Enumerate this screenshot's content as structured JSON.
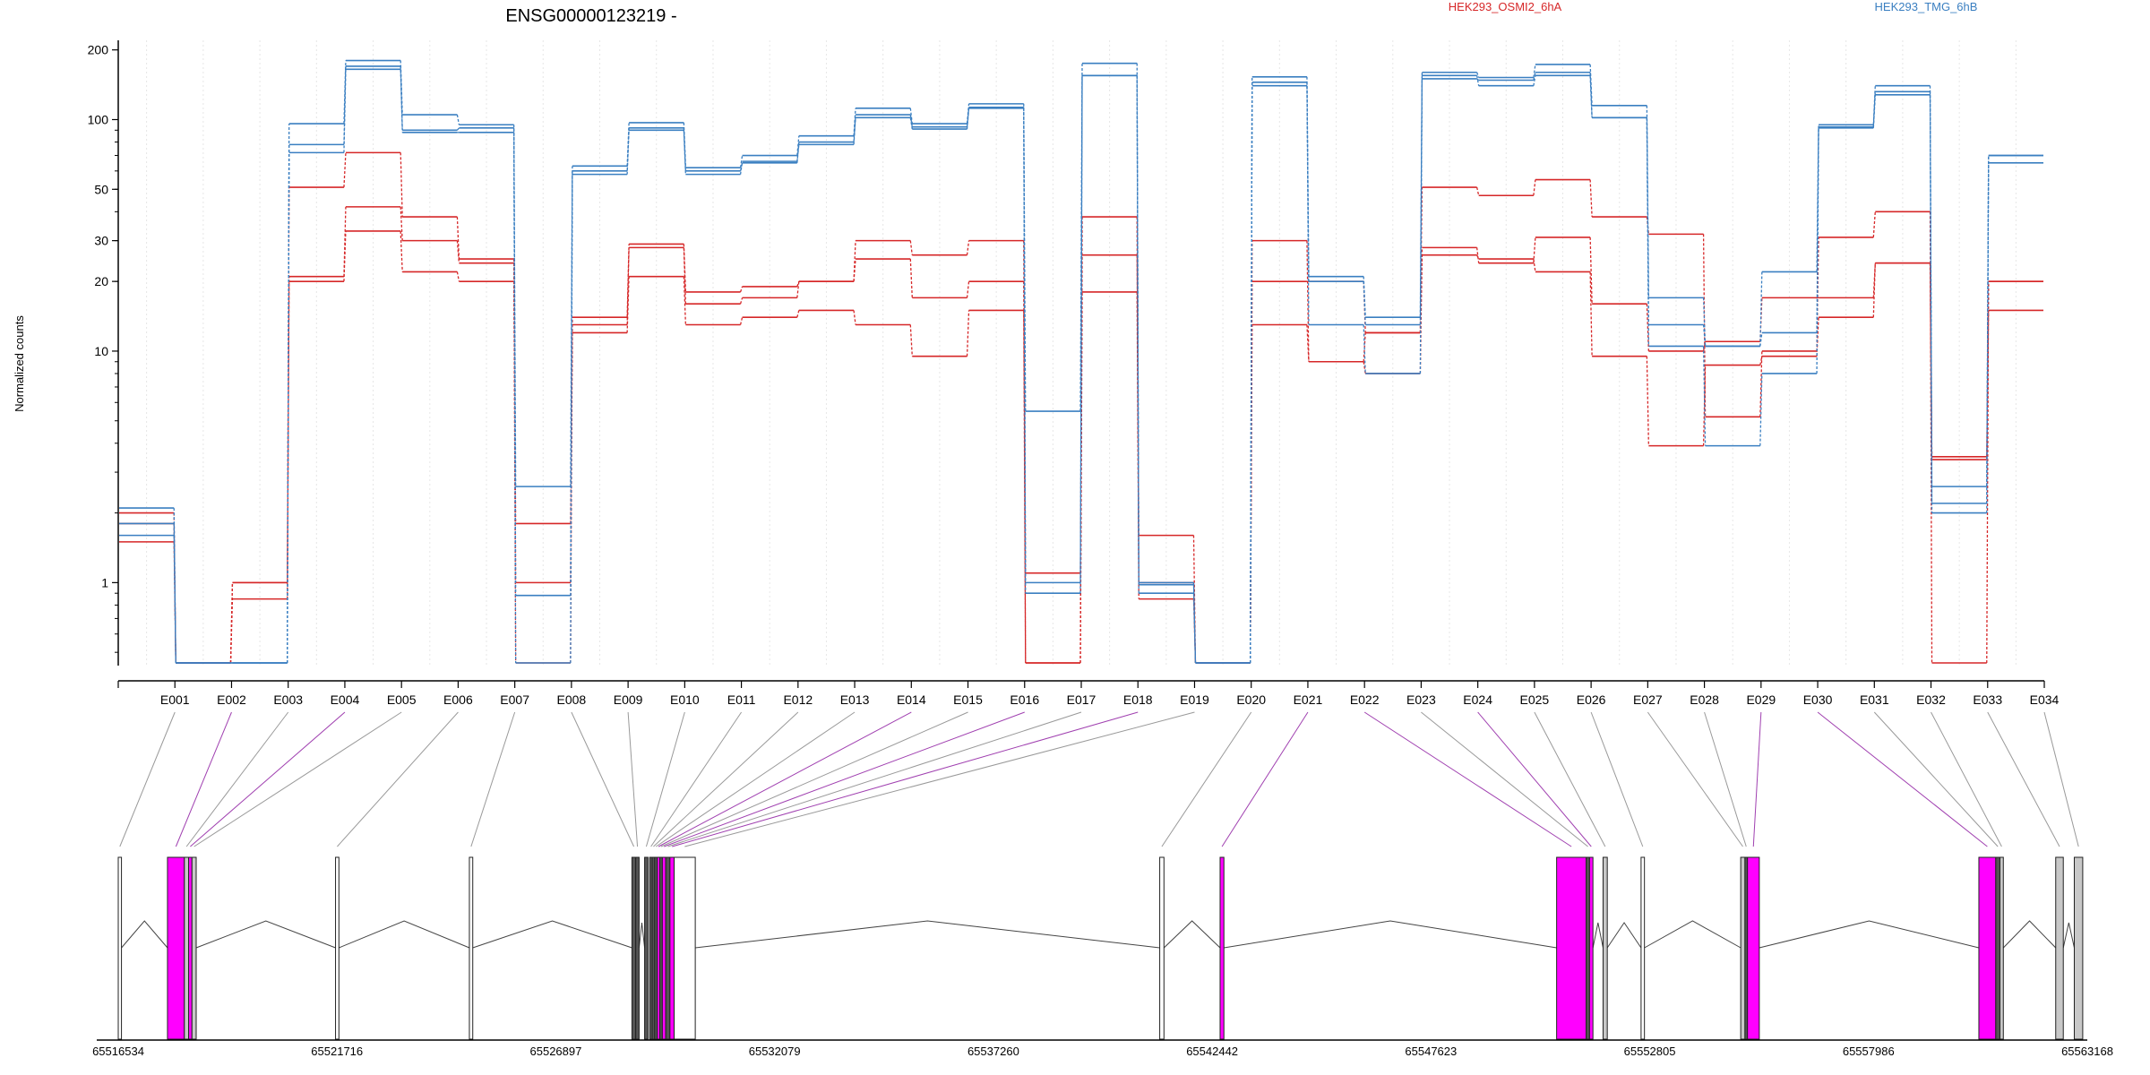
{
  "chart_data": [
    {
      "type": "line",
      "title": "ENSG00000123219 -",
      "ylabel": "Normalized counts",
      "yscale": "log",
      "ylim": [
        0.45,
        220
      ],
      "ytick_labels": [
        "1",
        "10",
        "20",
        "30",
        "50",
        "100",
        "200"
      ],
      "ytick_values": [
        1,
        10,
        20,
        30,
        50,
        100,
        200
      ],
      "ylabel_floor_value": 0.45,
      "categories": [
        "E001",
        "E002",
        "E003",
        "E004",
        "E005",
        "E006",
        "E007",
        "E008",
        "E009",
        "E010",
        "E011",
        "E012",
        "E013",
        "E014",
        "E015",
        "E016",
        "E017",
        "E018",
        "E019",
        "E020",
        "E021",
        "E022",
        "E023",
        "E024",
        "E025",
        "E026",
        "E027",
        "E028",
        "E029",
        "E030",
        "E031",
        "E032",
        "E033",
        "E034"
      ],
      "grid": "vertical",
      "legend": [
        {
          "name": "HEK293_OSMI2_6hA",
          "color": "#d62728",
          "placement": "top-center"
        },
        {
          "name": "HEK293_TMG_6hB",
          "color": "#3a7fc1",
          "placement": "top-right"
        }
      ],
      "series": [
        {
          "group": "HEK293_OSMI2_6hA",
          "color": "#d62728",
          "values": [
            1.8,
            0.45,
            1.0,
            21,
            42,
            30,
            24,
            1.0,
            13,
            28,
            16,
            17,
            20,
            25,
            17,
            20,
            1.1,
            26,
            1.6,
            0.45,
            20,
            20,
            12,
            28,
            24,
            31,
            16,
            10,
            11,
            17,
            17,
            24,
            3.5,
            20
          ]
        },
        {
          "group": "HEK293_OSMI2_6hA",
          "color": "#d62728",
          "values": [
            1.5,
            0.45,
            0.85,
            20,
            33,
            22,
            20,
            1.8,
            12,
            21,
            13,
            14,
            15,
            13,
            9.5,
            15,
            0.45,
            18,
            1.0,
            0.45,
            13,
            9.0,
            8.0,
            26,
            25,
            22,
            9.5,
            3.9,
            8.7,
            9.5,
            14,
            24,
            3.4,
            15
          ]
        },
        {
          "group": "HEK293_OSMI2_6hA",
          "color": "#d62728",
          "values": [
            2.0,
            0.45,
            1.0,
            51,
            72,
            38,
            25,
            0.45,
            14,
            29,
            18,
            19,
            20,
            30,
            26,
            30,
            0.45,
            38,
            0.85,
            0.45,
            30,
            9.0,
            12,
            51,
            47,
            55,
            38,
            32,
            5.2,
            10,
            31,
            40,
            0.45,
            20
          ]
        },
        {
          "group": "HEK293_TMG_6hB",
          "color": "#3a7fc1",
          "values": [
            2.1,
            0.45,
            0.45,
            96,
            180,
            105,
            95,
            2.6,
            63,
            97,
            62,
            70,
            85,
            112,
            96,
            117,
            5.5,
            175,
            0.98,
            0.45,
            153,
            21,
            14,
            160,
            152,
            173,
            115,
            17,
            10.5,
            22,
            95,
            140,
            2.6,
            70
          ]
        },
        {
          "group": "HEK293_TMG_6hB",
          "color": "#3a7fc1",
          "values": [
            1.8,
            0.45,
            0.45,
            78,
            170,
            90,
            92,
            0.88,
            60,
            92,
            60,
            65,
            80,
            105,
            93,
            113,
            1.0,
            155,
            1.0,
            0.45,
            145,
            20,
            13,
            150,
            148,
            160,
            102,
            13,
            10.5,
            12,
            93,
            132,
            2.2,
            65
          ]
        },
        {
          "group": "HEK293_TMG_6hB",
          "color": "#3a7fc1",
          "values": [
            1.6,
            0.45,
            0.45,
            72,
            165,
            88,
            88,
            0.45,
            58,
            90,
            58,
            66,
            78,
            102,
            91,
            112,
            0.9,
            155,
            0.9,
            0.45,
            140,
            13,
            8.0,
            155,
            140,
            155,
            102,
            10.5,
            3.9,
            8.0,
            92,
            128,
            2.0,
            70
          ]
        }
      ]
    },
    {
      "type": "gene_model",
      "genomic_ticks": [
        "65516534",
        "65521716",
        "65526897",
        "65532079",
        "65537260",
        "65542442",
        "65547623",
        "65552805",
        "65557986",
        "65563168"
      ],
      "genomic_range": [
        65516534,
        65563168
      ],
      "highlight_color": "#ff00ff",
      "exon_color": "#ffffff",
      "shared_exon_color": "#c8c8c8",
      "exons": [
        {
          "id": "E001",
          "start": 65516534,
          "end": 65516610,
          "style": "plain"
        },
        {
          "id": "E002",
          "start": 65517700,
          "end": 65518100,
          "style": "highlight"
        },
        {
          "id": "E003",
          "start": 65518100,
          "end": 65518200,
          "style": "gray"
        },
        {
          "id": "E004",
          "start": 65518200,
          "end": 65518280,
          "style": "highlight"
        },
        {
          "id": "E005",
          "start": 65518280,
          "end": 65518380,
          "style": "gray"
        },
        {
          "id": "E006",
          "start": 65521680,
          "end": 65521760,
          "style": "plain"
        },
        {
          "id": "E007",
          "start": 65524850,
          "end": 65524930,
          "style": "plain"
        },
        {
          "id": "E008",
          "start": 65528700,
          "end": 65528790,
          "style": "dark"
        },
        {
          "id": "E009",
          "start": 65528790,
          "end": 65528870,
          "style": "dark"
        },
        {
          "id": "E010",
          "start": 65529000,
          "end": 65529080,
          "style": "dark"
        },
        {
          "id": "E011",
          "start": 65529120,
          "end": 65529180,
          "style": "dark"
        },
        {
          "id": "E012",
          "start": 65529180,
          "end": 65529240,
          "style": "dark"
        },
        {
          "id": "E013",
          "start": 65529240,
          "end": 65529300,
          "style": "dark"
        },
        {
          "id": "E014",
          "start": 65529300,
          "end": 65529360,
          "style": "highlight"
        },
        {
          "id": "E015",
          "start": 65529360,
          "end": 65529420,
          "style": "dark"
        },
        {
          "id": "E016",
          "start": 65529420,
          "end": 65529500,
          "style": "highlight"
        },
        {
          "id": "E017",
          "start": 65529500,
          "end": 65529600,
          "style": "dark"
        },
        {
          "id": "E018",
          "start": 65529600,
          "end": 65529700,
          "style": "highlight"
        },
        {
          "id": "E019",
          "start": 65529700,
          "end": 65530200,
          "style": "plain"
        },
        {
          "id": "E020",
          "start": 65541200,
          "end": 65541300,
          "style": "plain"
        },
        {
          "id": "E021",
          "start": 65542630,
          "end": 65542720,
          "style": "highlight"
        },
        {
          "id": "E022",
          "start": 65550600,
          "end": 65551300,
          "style": "highlight"
        },
        {
          "id": "E023",
          "start": 65551300,
          "end": 65551380,
          "style": "dark"
        },
        {
          "id": "E024",
          "start": 65551380,
          "end": 65551460,
          "style": "highlight"
        },
        {
          "id": "E025",
          "start": 65551700,
          "end": 65551800,
          "style": "gray"
        },
        {
          "id": "E026",
          "start": 65552600,
          "end": 65552680,
          "style": "plain"
        },
        {
          "id": "E027",
          "start": 65554960,
          "end": 65555060,
          "style": "gray"
        },
        {
          "id": "E028",
          "start": 65555060,
          "end": 65555120,
          "style": "dark"
        },
        {
          "id": "E029",
          "start": 65555120,
          "end": 65555400,
          "style": "highlight"
        },
        {
          "id": "E030",
          "start": 65560600,
          "end": 65561000,
          "style": "highlight"
        },
        {
          "id": "E031",
          "start": 65561000,
          "end": 65561100,
          "style": "dark"
        },
        {
          "id": "E032",
          "start": 65561100,
          "end": 65561180,
          "style": "gray"
        },
        {
          "id": "E033",
          "start": 65562420,
          "end": 65562600,
          "style": "gray"
        },
        {
          "id": "E034",
          "start": 65562860,
          "end": 65563060,
          "style": "gray"
        }
      ]
    }
  ]
}
